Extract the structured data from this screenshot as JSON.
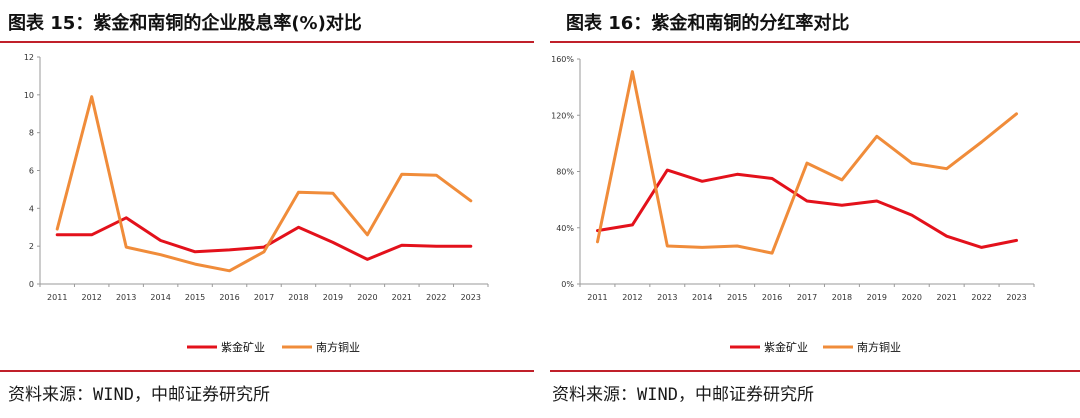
{
  "figures": [
    {
      "title": "图表 15：紫金和南铜的企业股息率(%)对比",
      "source": "资料来源：WIND，中邮证券研究所"
    },
    {
      "title": "图表 16：紫金和南铜的分红率对比",
      "source": "资料来源：WIND，中邮证券研究所"
    }
  ],
  "colors": {
    "zijin": "#e3111b",
    "southern": "#f08c3a",
    "rule": "#c0202a"
  },
  "chart_data": [
    {
      "type": "line",
      "title": "",
      "xlabel": "",
      "ylabel": "",
      "categories": [
        "2011",
        "2012",
        "2013",
        "2014",
        "2015",
        "2016",
        "2017",
        "2018",
        "2019",
        "2020",
        "2021",
        "2022",
        "2023"
      ],
      "ylim": [
        0,
        12
      ],
      "yticks": [
        0,
        2,
        4,
        6,
        8,
        10,
        12
      ],
      "ytick_labels": [
        "0",
        "2",
        "4",
        "6",
        "8",
        "10",
        "12"
      ],
      "grid": false,
      "legend_position": "bottom",
      "series": [
        {
          "name": "紫金矿业",
          "color": "#e3111b",
          "values": [
            2.6,
            2.6,
            3.5,
            2.3,
            1.7,
            1.8,
            1.95,
            3.0,
            2.2,
            1.3,
            2.05,
            2.0,
            2.0
          ]
        },
        {
          "name": "南方铜业",
          "color": "#f08c3a",
          "values": [
            2.9,
            9.9,
            1.95,
            1.55,
            1.05,
            0.7,
            1.7,
            4.85,
            4.8,
            2.6,
            5.8,
            5.75,
            4.4
          ]
        }
      ]
    },
    {
      "type": "line",
      "title": "",
      "xlabel": "",
      "ylabel": "",
      "categories": [
        "2011",
        "2012",
        "2013",
        "2014",
        "2015",
        "2016",
        "2017",
        "2018",
        "2019",
        "2020",
        "2021",
        "2022",
        "2023"
      ],
      "ylim": [
        0,
        160
      ],
      "yticks": [
        0,
        40,
        80,
        120,
        160
      ],
      "ytick_labels": [
        "0%",
        "40%",
        "80%",
        "120%",
        "160%"
      ],
      "grid": false,
      "legend_position": "bottom",
      "series": [
        {
          "name": "紫金矿业",
          "color": "#e3111b",
          "values": [
            38,
            42,
            81,
            73,
            78,
            75,
            59,
            56,
            59,
            49,
            34,
            26,
            31
          ]
        },
        {
          "name": "南方铜业",
          "color": "#f08c3a",
          "values": [
            30,
            151,
            27,
            26,
            27,
            22,
            86,
            74,
            105,
            86,
            82,
            101,
            121
          ]
        }
      ]
    }
  ]
}
